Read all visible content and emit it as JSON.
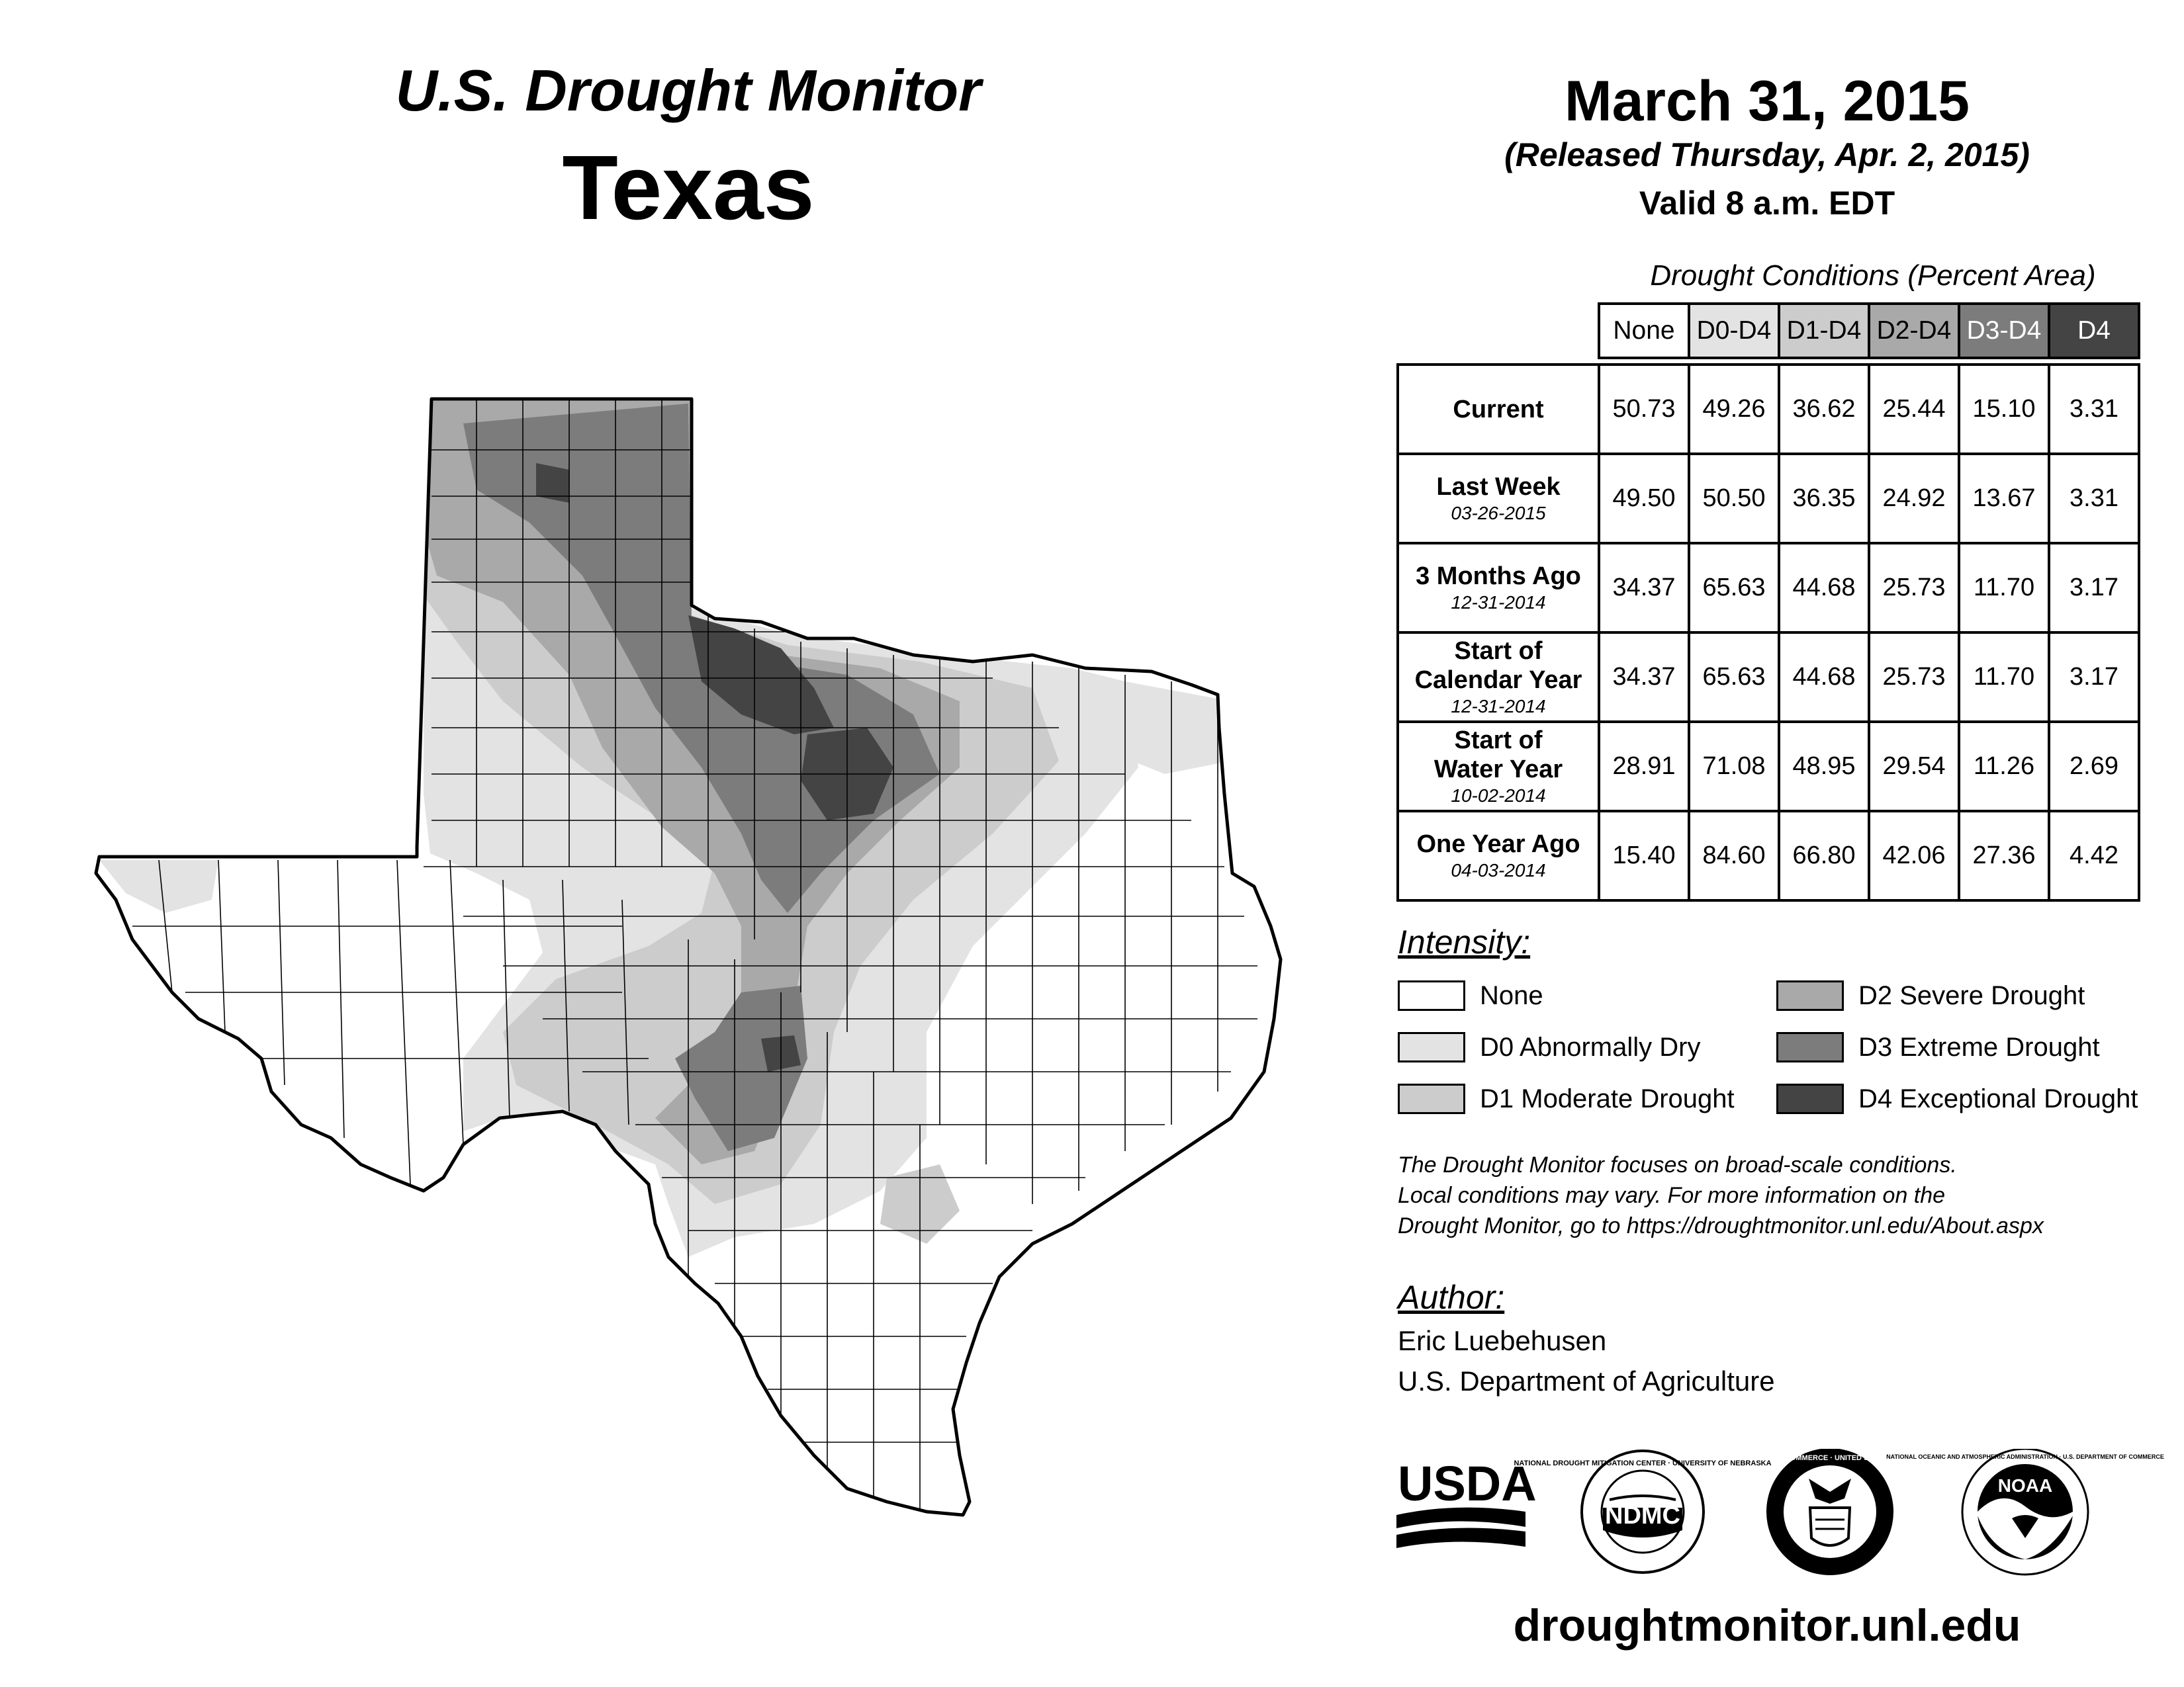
{
  "header": {
    "brand": "U.S. Drought Monitor",
    "state": "Texas",
    "date": "March 31, 2015",
    "release": "(Released Thursday, Apr. 2, 2015)",
    "valid": "Valid 8 a.m. EDT"
  },
  "table": {
    "caption": "Drought Conditions (Percent Area)",
    "columns": [
      "None",
      "D0-D4",
      "D1-D4",
      "D2-D4",
      "D3-D4",
      "D4"
    ],
    "rows": [
      {
        "label": "Current",
        "date": "",
        "values": [
          "50.73",
          "49.26",
          "36.62",
          "25.44",
          "15.10",
          "3.31"
        ]
      },
      {
        "label": "Last Week",
        "date": "03-26-2015",
        "values": [
          "49.50",
          "50.50",
          "36.35",
          "24.92",
          "13.67",
          "3.31"
        ]
      },
      {
        "label": "3 Months Ago",
        "date": "12-31-2014",
        "values": [
          "34.37",
          "65.63",
          "44.68",
          "25.73",
          "11.70",
          "3.17"
        ]
      },
      {
        "label": "Start of Calendar Year",
        "date": "12-31-2014",
        "values": [
          "34.37",
          "65.63",
          "44.68",
          "25.73",
          "11.70",
          "3.17"
        ]
      },
      {
        "label": "Start of Water Year",
        "date": "10-02-2014",
        "values": [
          "28.91",
          "71.08",
          "48.95",
          "29.54",
          "11.26",
          "2.69"
        ]
      },
      {
        "label": "One Year Ago",
        "date": "04-03-2014",
        "values": [
          "15.40",
          "84.60",
          "66.80",
          "42.06",
          "27.36",
          "4.42"
        ]
      }
    ]
  },
  "legend": {
    "title": "Intensity:",
    "items": [
      {
        "label": "None",
        "color": "#ffffff"
      },
      {
        "label": "D0 Abnormally Dry",
        "color": "#e3e3e3"
      },
      {
        "label": "D1 Moderate Drought",
        "color": "#cccccc"
      },
      {
        "label": "D2 Severe Drought",
        "color": "#a9a9a9"
      },
      {
        "label": "D3 Extreme Drought",
        "color": "#7c7c7c"
      },
      {
        "label": "D4 Exceptional Drought",
        "color": "#444444"
      }
    ]
  },
  "disclaimer": [
    "The Drought Monitor focuses on broad-scale conditions.",
    "Local conditions may vary. For more information on the",
    "Drought Monitor, go to https://droughtmonitor.unl.edu/About.aspx"
  ],
  "author": {
    "title": "Author:",
    "name": "Eric Luebehusen",
    "org": "U.S. Department of Agriculture"
  },
  "logos": {
    "usda": "USDA",
    "ndmc": "NDMC",
    "ndmc_ring": "NATIONAL DROUGHT MITIGATION CENTER · UNIVERSITY OF NEBRASKA",
    "commerce_ring": "DEPARTMENT OF COMMERCE · UNITED STATES OF AMERICA",
    "noaa": "NOAA",
    "noaa_ring": "NATIONAL OCEANIC AND ATMOSPHERIC ADMINISTRATION · U.S. DEPARTMENT OF COMMERCE"
  },
  "website": "droughtmonitor.unl.edu"
}
